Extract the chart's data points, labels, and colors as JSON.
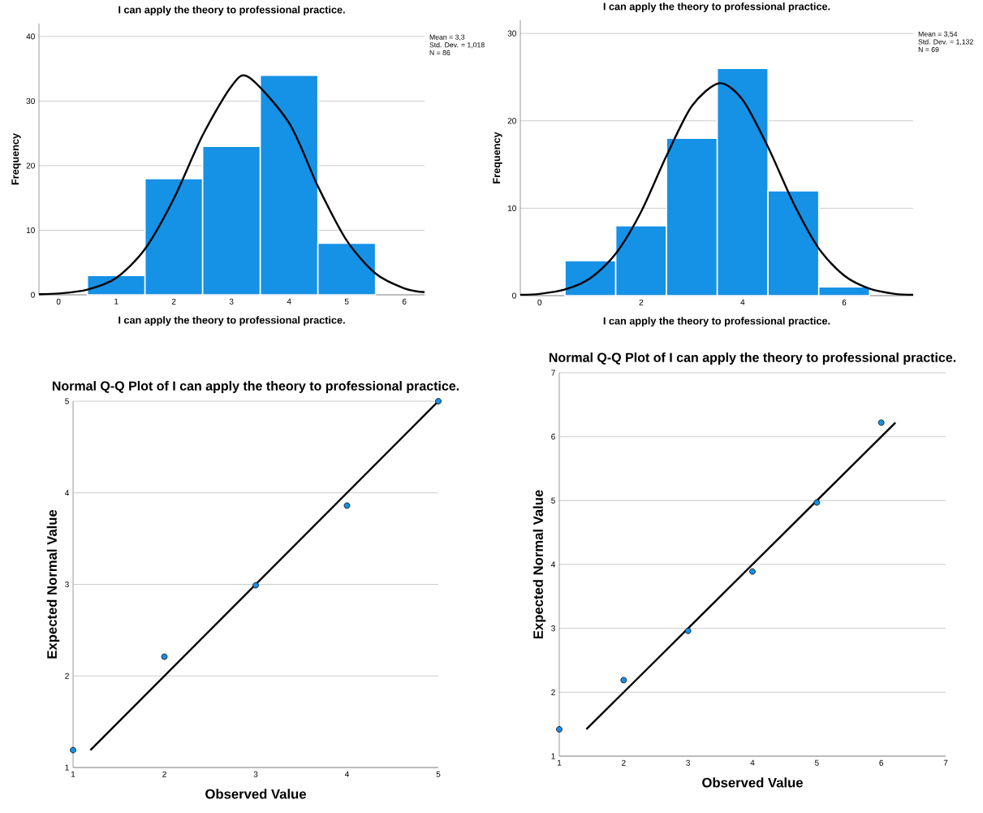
{
  "chart_data": [
    {
      "type": "histogram",
      "title": "I can apply the theory to professional practice.",
      "xlabel": "I can apply the theory to professional practice.",
      "ylabel": "Frequency",
      "xlim": [
        -0.34,
        6.35
      ],
      "ylim": [
        0,
        42
      ],
      "xticks": [
        0,
        1,
        2,
        3,
        4,
        5,
        6
      ],
      "yticks": [
        0,
        10,
        20,
        30,
        40
      ],
      "grid": "y",
      "annotations": [
        "Mean = 3,3",
        "Std. Dev. = 1,018",
        "N = 86"
      ],
      "series": [
        {
          "type": "histogram",
          "color": "#1591e6",
          "bins": [
            0.5,
            1.5,
            2.5,
            3.5,
            4.5,
            5.5
          ],
          "values": [
            3,
            18,
            23,
            34,
            8
          ]
        },
        {
          "type": "line",
          "color": "#000000",
          "x": [
            -0.34,
            0,
            0.5,
            1,
            1.5,
            2,
            2.5,
            3,
            3.3,
            4,
            4.5,
            5,
            5.5,
            6,
            6.35
          ],
          "values": [
            0.1,
            0.2,
            0.8,
            2.6,
            7.1,
            14.9,
            24.7,
            32.3,
            33.7,
            26.6,
            16.8,
            8.4,
            3.3,
            1.0,
            0.4
          ]
        }
      ]
    },
    {
      "type": "histogram",
      "title": "I can apply the theory to professional practice.",
      "xlabel": "I can apply the theory to professional practice.",
      "ylabel": "Frequency",
      "xlim": [
        -0.38,
        7.36
      ],
      "ylim": [
        0,
        31.5
      ],
      "xticks": [
        0,
        2,
        4,
        6
      ],
      "yticks": [
        0,
        10,
        20,
        30
      ],
      "grid": "y",
      "annotations": [
        "Mean = 3,54",
        "Std. Dev. = 1,132",
        "N = 69"
      ],
      "series": [
        {
          "type": "histogram",
          "color": "#1591e6",
          "bins": [
            0.5,
            1.5,
            2.5,
            3.5,
            4.5,
            5.5,
            6.5
          ],
          "values": [
            4,
            8,
            18,
            26,
            12,
            1
          ]
        },
        {
          "type": "line",
          "color": "#000000",
          "x": [
            -0.38,
            0,
            0.5,
            1,
            1.5,
            2,
            2.5,
            3,
            3.54,
            4,
            4.5,
            5,
            5.5,
            6,
            6.5,
            7,
            7.36
          ],
          "values": [
            0.1,
            0.2,
            0.7,
            2.0,
            4.8,
            9.6,
            16.0,
            21.7,
            24.3,
            22.4,
            17.0,
            10.6,
            5.4,
            2.3,
            0.8,
            0.2,
            0.1
          ]
        }
      ]
    },
    {
      "type": "scatter",
      "title": "Normal Q-Q Plot of I can apply the theory to professional practice.",
      "xlabel": "Observed Value",
      "ylabel": "Expected Normal Value",
      "xlim": [
        1,
        5
      ],
      "ylim": [
        1,
        5
      ],
      "xticks": [
        1,
        2,
        3,
        4,
        5
      ],
      "yticks": [
        1,
        2,
        3,
        4,
        5
      ],
      "grid": "y",
      "series": [
        {
          "type": "scatter",
          "color": "#1591e6",
          "x": [
            1,
            2,
            3,
            4,
            5
          ],
          "values": [
            1.19,
            2.21,
            2.99,
            3.86,
            5.0
          ]
        },
        {
          "type": "line",
          "color": "#000000",
          "x": [
            1.19,
            5
          ],
          "values": [
            1.19,
            5
          ]
        }
      ]
    },
    {
      "type": "scatter",
      "title": "Normal Q-Q Plot of I can apply the theory to professional practice.",
      "xlabel": "Observed Value",
      "ylabel": "Expected Normal Value",
      "xlim": [
        1,
        7
      ],
      "ylim": [
        1,
        7
      ],
      "xticks": [
        1,
        2,
        3,
        4,
        5,
        6,
        7
      ],
      "yticks": [
        1,
        2,
        3,
        4,
        5,
        6,
        7
      ],
      "grid": "y",
      "series": [
        {
          "type": "scatter",
          "color": "#1591e6",
          "x": [
            1,
            2,
            3,
            4,
            5,
            6
          ],
          "values": [
            1.42,
            2.19,
            2.96,
            3.89,
            4.97,
            6.22
          ]
        },
        {
          "type": "line",
          "color": "#000000",
          "x": [
            1.42,
            6.22
          ],
          "values": [
            1.42,
            6.22
          ]
        }
      ]
    }
  ]
}
